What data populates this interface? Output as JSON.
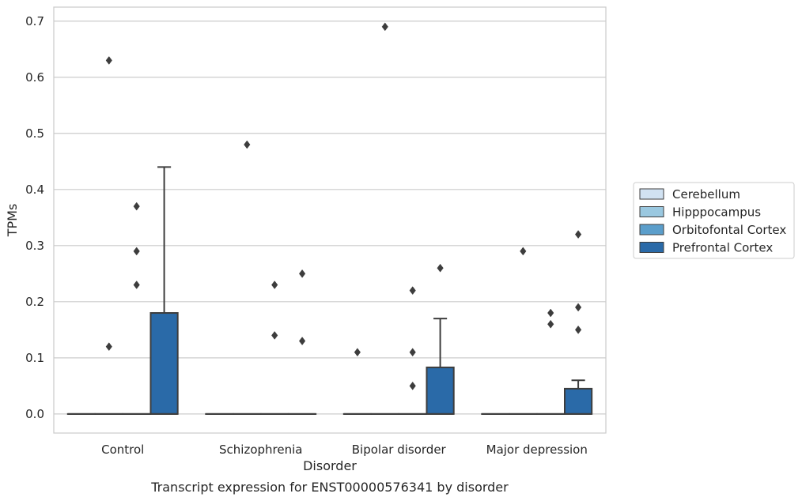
{
  "chart_data": {
    "type": "box",
    "caption": "Transcript expression for ENST00000576341 by disorder",
    "xlabel": "Disorder",
    "ylabel": "TPMs",
    "ylim": [
      -0.034,
      0.725
    ],
    "yticks": [
      0.0,
      0.1,
      0.2,
      0.3,
      0.4,
      0.5,
      0.6,
      0.7
    ],
    "ytick_labels": [
      "0.0",
      "0.1",
      "0.2",
      "0.3",
      "0.4",
      "0.5",
      "0.6",
      "0.7"
    ],
    "grid": "horizontal",
    "legend_position": "right",
    "categories": [
      "Control",
      "Schizophrenia",
      "Bipolar disorder",
      "Major depression"
    ],
    "series": [
      {
        "name": "Cerebellum",
        "color": "#d1e2f2",
        "boxes": [
          {
            "q1": 0,
            "median": 0,
            "q3": 0,
            "whisker_low": 0,
            "whisker_high": 0,
            "outliers": []
          },
          {
            "q1": 0,
            "median": 0,
            "q3": 0,
            "whisker_low": 0,
            "whisker_high": 0,
            "outliers": []
          },
          {
            "q1": 0,
            "median": 0,
            "q3": 0,
            "whisker_low": 0,
            "whisker_high": 0,
            "outliers": [
              0.11
            ]
          },
          {
            "q1": 0,
            "median": 0,
            "q3": 0,
            "whisker_low": 0,
            "whisker_high": 0,
            "outliers": []
          }
        ]
      },
      {
        "name": "Hipppocampus",
        "color": "#9ac8e0",
        "boxes": [
          {
            "q1": 0,
            "median": 0,
            "q3": 0,
            "whisker_low": 0,
            "whisker_high": 0,
            "outliers": [
              0.63,
              0.12
            ]
          },
          {
            "q1": 0,
            "median": 0,
            "q3": 0,
            "whisker_low": 0,
            "whisker_high": 0,
            "outliers": [
              0.48
            ]
          },
          {
            "q1": 0,
            "median": 0,
            "q3": 0,
            "whisker_low": 0,
            "whisker_high": 0,
            "outliers": [
              0.69
            ]
          },
          {
            "q1": 0,
            "median": 0,
            "q3": 0,
            "whisker_low": 0,
            "whisker_high": 0,
            "outliers": [
              0.29
            ]
          }
        ]
      },
      {
        "name": "Orbitofontal Cortex",
        "color": "#5b9ecb",
        "boxes": [
          {
            "q1": 0,
            "median": 0,
            "q3": 0,
            "whisker_low": 0,
            "whisker_high": 0,
            "outliers": [
              0.37,
              0.29,
              0.23
            ]
          },
          {
            "q1": 0,
            "median": 0,
            "q3": 0,
            "whisker_low": 0,
            "whisker_high": 0,
            "outliers": [
              0.23,
              0.14
            ]
          },
          {
            "q1": 0,
            "median": 0,
            "q3": 0,
            "whisker_low": 0,
            "whisker_high": 0,
            "outliers": [
              0.22,
              0.11,
              0.05
            ]
          },
          {
            "q1": 0,
            "median": 0,
            "q3": 0,
            "whisker_low": 0,
            "whisker_high": 0,
            "outliers": [
              0.18,
              0.16
            ]
          }
        ]
      },
      {
        "name": "Prefrontal Cortex",
        "color": "#2a6aa8",
        "boxes": [
          {
            "q1": 0,
            "median": 0,
            "q3": 0.18,
            "whisker_low": 0,
            "whisker_high": 0.44,
            "outliers": []
          },
          {
            "q1": 0,
            "median": 0,
            "q3": 0,
            "whisker_low": 0,
            "whisker_high": 0,
            "outliers": [
              0.25,
              0.13
            ]
          },
          {
            "q1": 0,
            "median": 0,
            "q3": 0.083,
            "whisker_low": 0,
            "whisker_high": 0.17,
            "outliers": [
              0.26
            ]
          },
          {
            "q1": 0,
            "median": 0,
            "q3": 0.045,
            "whisker_low": 0,
            "whisker_high": 0.06,
            "outliers": [
              0.32,
              0.19,
              0.15
            ]
          }
        ]
      }
    ]
  }
}
